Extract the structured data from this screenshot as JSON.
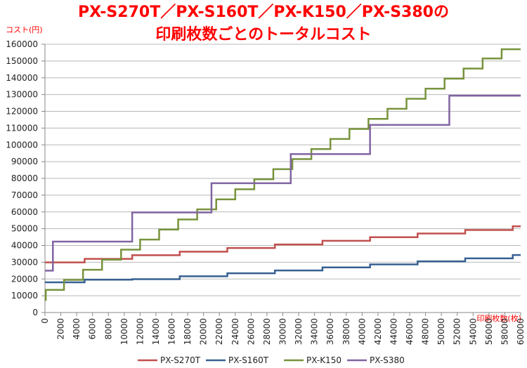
{
  "chart_data": {
    "type": "line",
    "title_line1": "PX-S270T／PX-S160T／PX-K150／PX-S380の",
    "title_line2": "印刷枚数ごとのトータルコスト",
    "ylabel": "コスト(円)",
    "xlabel": "印刷枚数(枚)",
    "xlim": [
      0,
      60000
    ],
    "ylim": [
      0,
      160000
    ],
    "xticks": [
      0,
      2000,
      4000,
      6000,
      8000,
      10000,
      12000,
      14000,
      16000,
      18000,
      20000,
      22000,
      24000,
      26000,
      28000,
      30000,
      32000,
      34000,
      36000,
      38000,
      40000,
      42000,
      44000,
      46000,
      48000,
      50000,
      52000,
      54000,
      56000,
      58000,
      60000
    ],
    "yticks": [
      0,
      10000,
      20000,
      30000,
      40000,
      50000,
      60000,
      70000,
      80000,
      90000,
      100000,
      110000,
      120000,
      130000,
      140000,
      150000,
      160000
    ],
    "grid": "horizontal",
    "legend_position": "bottom",
    "step": true,
    "series": [
      {
        "name": "PX-S270T",
        "color": "#c0504d",
        "steps": [
          [
            0,
            29900
          ],
          [
            5000,
            32000
          ],
          [
            11000,
            34200
          ],
          [
            17000,
            36300
          ],
          [
            23000,
            38500
          ],
          [
            29000,
            40600
          ],
          [
            35000,
            42800
          ],
          [
            41000,
            44900
          ],
          [
            47000,
            47100
          ],
          [
            53000,
            49200
          ],
          [
            59000,
            51400
          ]
        ]
      },
      {
        "name": "PX-S160T",
        "color": "#376092",
        "steps": [
          [
            0,
            18000
          ],
          [
            5000,
            19600
          ],
          [
            11000,
            19900
          ],
          [
            17000,
            21600
          ],
          [
            23000,
            23400
          ],
          [
            29000,
            25100
          ],
          [
            35000,
            26900
          ],
          [
            41000,
            28700
          ],
          [
            47000,
            30500
          ],
          [
            53000,
            32300
          ],
          [
            59000,
            34300
          ]
        ]
      },
      {
        "name": "PX-K150",
        "color": "#77933c",
        "steps": [
          [
            0,
            7500
          ],
          [
            100,
            13500
          ],
          [
            2400,
            19500
          ],
          [
            4800,
            25500
          ],
          [
            7200,
            31500
          ],
          [
            9600,
            37500
          ],
          [
            12000,
            43500
          ],
          [
            14400,
            49500
          ],
          [
            16800,
            55500
          ],
          [
            19200,
            61500
          ],
          [
            21600,
            67500
          ],
          [
            24000,
            73500
          ],
          [
            26400,
            79500
          ],
          [
            28800,
            85500
          ],
          [
            31200,
            91500
          ],
          [
            33600,
            97500
          ],
          [
            36000,
            103500
          ],
          [
            38400,
            109500
          ],
          [
            40800,
            115500
          ],
          [
            43200,
            121500
          ],
          [
            45600,
            127500
          ],
          [
            48000,
            133500
          ],
          [
            50400,
            139500
          ],
          [
            52800,
            145500
          ],
          [
            55200,
            151500
          ],
          [
            57600,
            157000
          ]
        ]
      },
      {
        "name": "PX-S380",
        "color": "#8064a2",
        "steps": [
          [
            0,
            25000
          ],
          [
            1000,
            42300
          ],
          [
            11000,
            59700
          ],
          [
            21000,
            77100
          ],
          [
            31000,
            94500
          ],
          [
            41000,
            111900
          ],
          [
            51000,
            129300
          ]
        ]
      }
    ]
  }
}
